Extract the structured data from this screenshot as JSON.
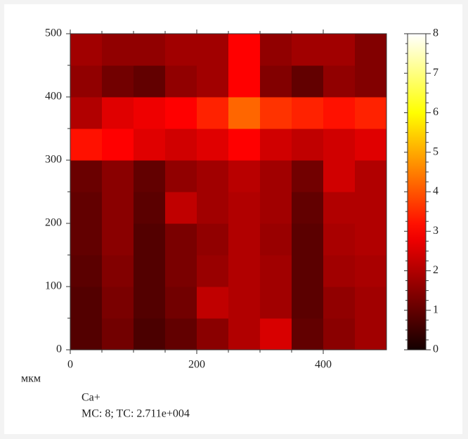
{
  "chart_data": {
    "type": "heatmap",
    "xbins": [
      0,
      50,
      100,
      150,
      200,
      250,
      300,
      350,
      400,
      450,
      500
    ],
    "ybins": [
      0,
      50,
      100,
      150,
      200,
      250,
      300,
      350,
      400,
      450,
      500
    ],
    "z": [
      [
        0.8,
        1.2,
        0.7,
        1.0,
        1.5,
        2.0,
        2.5,
        1.0,
        1.5,
        1.8
      ],
      [
        0.8,
        1.3,
        0.8,
        1.2,
        2.2,
        2.0,
        1.8,
        0.9,
        1.6,
        1.8
      ],
      [
        0.9,
        1.4,
        0.8,
        1.3,
        1.7,
        2.0,
        1.8,
        0.9,
        1.8,
        1.9
      ],
      [
        1.0,
        1.5,
        0.8,
        1.3,
        1.6,
        2.0,
        1.7,
        0.9,
        1.9,
        2.0
      ],
      [
        1.0,
        1.5,
        0.9,
        2.2,
        1.8,
        2.0,
        1.8,
        1.0,
        2.0,
        2.0
      ],
      [
        1.1,
        1.5,
        1.0,
        1.6,
        1.8,
        2.1,
        1.8,
        1.2,
        2.4,
        2.0
      ],
      [
        3.2,
        3.0,
        2.6,
        2.4,
        2.6,
        3.0,
        2.4,
        2.2,
        2.4,
        2.6
      ],
      [
        2.0,
        2.6,
        2.8,
        3.0,
        3.4,
        4.2,
        3.6,
        3.4,
        3.2,
        3.4
      ],
      [
        1.6,
        1.2,
        1.0,
        1.6,
        1.8,
        3.0,
        1.4,
        1.0,
        1.6,
        1.4
      ],
      [
        1.8,
        1.6,
        1.6,
        1.8,
        1.8,
        3.0,
        1.6,
        1.8,
        1.8,
        1.4
      ]
    ],
    "xlim": [
      0,
      500
    ],
    "xticks": [
      0,
      200,
      400
    ],
    "ylim": [
      0,
      500
    ],
    "yticks": [
      0,
      100,
      200,
      300,
      400,
      500
    ],
    "colormap": "hot",
    "clim": [
      0,
      8
    ],
    "cticks": [
      0,
      1,
      2,
      3,
      4,
      5,
      6,
      7,
      8
    ],
    "x_unit": "мкм",
    "annotations": [
      "Ca+",
      "MC: 8; TC: 2.711e+004"
    ]
  }
}
